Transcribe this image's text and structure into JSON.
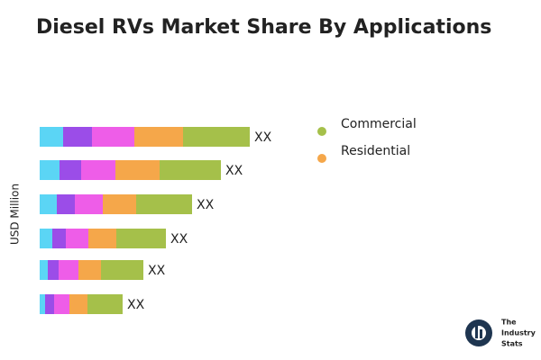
{
  "chart_data": {
    "type": "stacked-barh",
    "title": "Diesel RVs Market Share By Applications",
    "y_label": "USD Million",
    "categories": [
      null,
      null,
      null,
      null,
      null,
      null
    ],
    "xlim": [
      0,
      280
    ],
    "series": [
      {
        "color": "#5bd5f5",
        "values": [
          26,
          22,
          19,
          14,
          9,
          6
        ]
      },
      {
        "color": "#9b4de8",
        "values": [
          32,
          24,
          20,
          15,
          12,
          10
        ]
      },
      {
        "color": "#ee5de8",
        "values": [
          47,
          38,
          31,
          25,
          22,
          17
        ]
      },
      {
        "name": "Residential",
        "color": "#f5a74a",
        "values": [
          54,
          49,
          37,
          31,
          25,
          20
        ]
      },
      {
        "name": "Commercial",
        "color": "#a5c04a",
        "values": [
          74,
          68,
          62,
          55,
          47,
          39
        ]
      }
    ],
    "bar_labels": [
      "XX",
      "XX",
      "XX",
      "XX",
      "XX",
      "XX"
    ],
    "watermark": [
      "The",
      "Industry",
      "Stats"
    ]
  }
}
